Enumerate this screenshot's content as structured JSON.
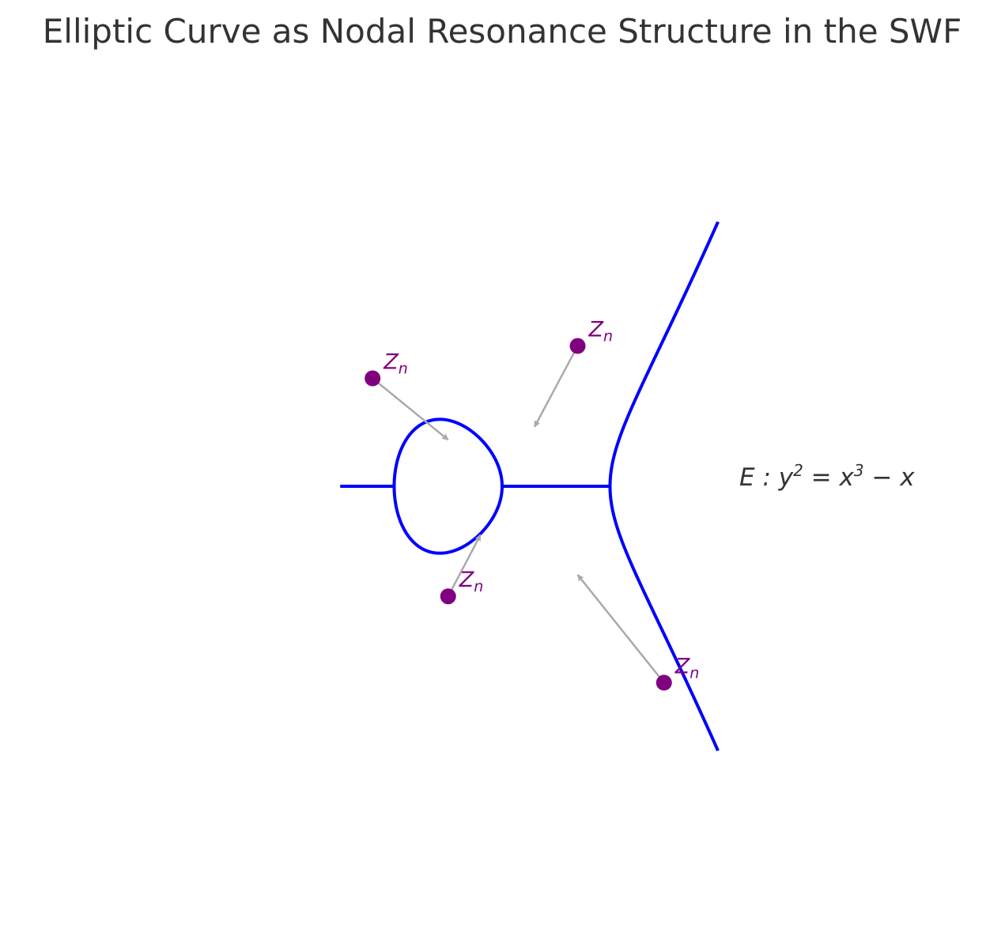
{
  "chart_data": {
    "type": "line",
    "title": "Elliptic Curve as Nodal Resonance Structure in the SWF",
    "xlabel": "",
    "ylabel": "",
    "xlim": [
      -2,
      2
    ],
    "ylim": [
      -2.5,
      2.5
    ],
    "grid": false,
    "axes_visible": false,
    "series": [
      {
        "equation": {
          "lhs": "E : y",
          "sup1": "2",
          "mid": " = x",
          "sup2": "3",
          "rhs": " − x"
        },
        "color": "#0000ff",
        "x_from": -1.5,
        "x_to": 2.0,
        "points": [
          [
            -1.5,
            0
          ],
          [
            -1.0,
            0
          ],
          [
            -0.9,
            0.41
          ],
          [
            -0.8,
            0.53
          ],
          [
            -0.6,
            0.62
          ],
          [
            -0.4,
            0.58
          ],
          [
            -0.2,
            0.44
          ],
          [
            0.0,
            0
          ],
          [
            -0.2,
            -0.44
          ],
          [
            -0.4,
            -0.58
          ],
          [
            -0.6,
            -0.62
          ],
          [
            -0.8,
            -0.53
          ],
          [
            -0.9,
            -0.41
          ],
          [
            -1.0,
            0
          ],
          [
            0.0,
            0
          ],
          [
            1.0,
            0
          ],
          [
            1.2,
            0.92
          ],
          [
            1.5,
            1.57
          ],
          [
            2.0,
            2.45
          ],
          [
            1.5,
            -1.57
          ],
          [
            1.2,
            -0.92
          ],
          [
            1.0,
            0
          ]
        ]
      }
    ],
    "nodes": [
      {
        "label": "Z",
        "sub": "n",
        "x": -1.2,
        "y": 1.0,
        "arrow_to": [
          -0.5,
          0.43
        ]
      },
      {
        "label": "Z",
        "sub": "n",
        "x": 0.7,
        "y": 1.3,
        "arrow_to": [
          0.3,
          0.55
        ]
      },
      {
        "label": "Z",
        "sub": "n",
        "x": -0.5,
        "y": -1.02,
        "arrow_to": [
          -0.2,
          -0.45
        ]
      },
      {
        "label": "Z",
        "sub": "n",
        "x": 1.5,
        "y": -1.82,
        "arrow_to": [
          0.7,
          -0.82
        ]
      }
    ],
    "colors": {
      "curve": "#0000ff",
      "nodes": "#800080",
      "arrows": "#aaaaaa",
      "text": "#333333"
    }
  }
}
